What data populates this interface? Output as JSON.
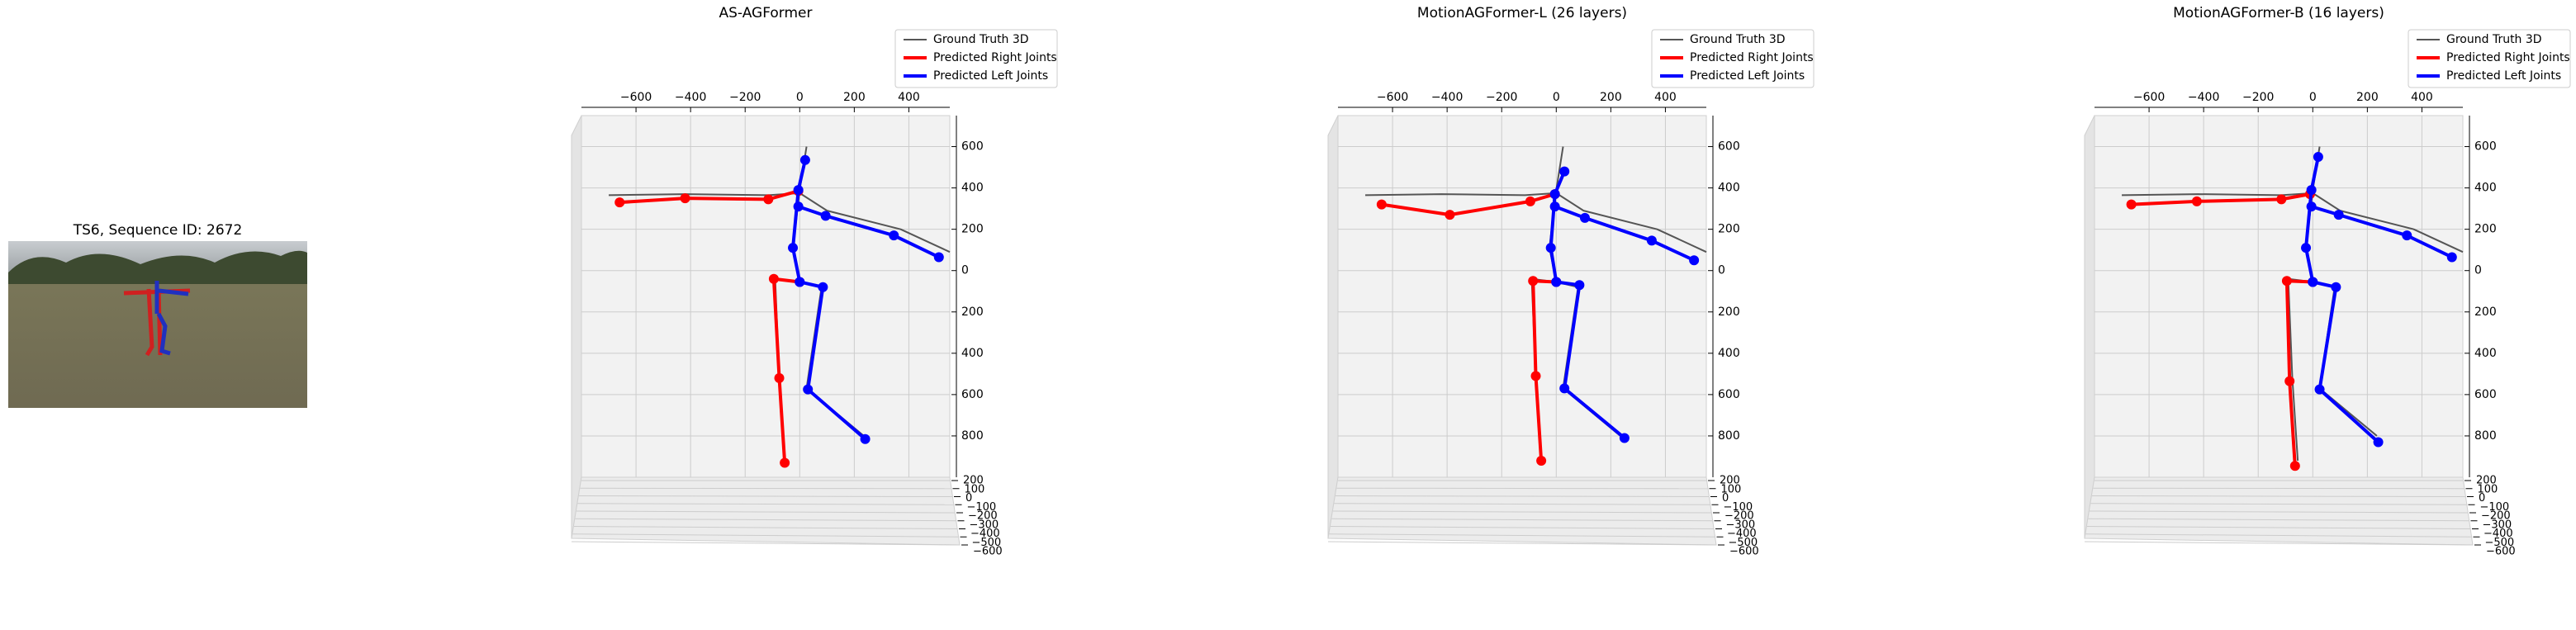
{
  "chart_data": [
    {
      "type": "image",
      "title": "TS6, Sequence ID: 2672"
    },
    {
      "type": "line3d",
      "title": "AS-AGFormer",
      "legend": "upper right",
      "xlim": [
        -800,
        550
      ],
      "xticks": [
        {
          "value": -600,
          "label": "−600"
        },
        {
          "value": -400,
          "label": "−400"
        },
        {
          "value": -200,
          "label": "−200"
        },
        0,
        200,
        400
      ],
      "ylim": [
        -1000,
        750
      ],
      "yticks": [
        600,
        400,
        200,
        0,
        {
          "value": -200,
          "label": "200"
        },
        {
          "value": -400,
          "label": "400"
        },
        {
          "value": -600,
          "label": "600"
        },
        {
          "value": -800,
          "label": "800"
        }
      ],
      "zlim": [
        -600,
        200
      ],
      "zticks": [
        200,
        100,
        0,
        {
          "value": -100,
          "label": "−100"
        },
        {
          "value": -200,
          "label": "−200"
        },
        {
          "value": -300,
          "label": "−300"
        },
        {
          "value": -400,
          "label": "−400"
        },
        {
          "value": -500,
          "label": "−500"
        },
        {
          "value": -600,
          "label": "−600"
        }
      ],
      "series": [
        {
          "name": "Ground Truth 3D",
          "color": "#555555",
          "markers": false,
          "x": [
            -700,
            -420,
            -115,
            0,
            100,
            370,
            550,
            null,
            25,
            0,
            -25,
            0,
            null,
            0,
            -90,
            -75,
            -55,
            null,
            0,
            80,
            25,
            235
          ],
          "values": [
            365,
            370,
            365,
            375,
            290,
            200,
            90,
            null,
            600,
            390,
            110,
            -55,
            null,
            -55,
            -40,
            -520,
            -920,
            null,
            -55,
            -80,
            -570,
            -800
          ]
        },
        {
          "name": "Predicted Right Joints",
          "color": "#ff0000",
          "markers": true,
          "x": [
            -660,
            -420,
            -115,
            -5,
            null,
            0,
            -95,
            -75,
            -55
          ],
          "values": [
            330,
            350,
            345,
            385,
            null,
            -55,
            -40,
            -520,
            -930
          ]
        },
        {
          "name": "Predicted Left Joints",
          "color": "#0000ff",
          "markers": true,
          "x": [
            20,
            -5,
            -25,
            0,
            null,
            -5,
            95,
            345,
            510,
            null,
            0,
            85,
            30,
            240
          ],
          "values": [
            535,
            390,
            110,
            -55,
            null,
            310,
            265,
            170,
            65,
            null,
            -55,
            -80,
            -575,
            -815
          ]
        }
      ]
    },
    {
      "type": "line3d",
      "title": "MotionAGFormer-L (26 layers)",
      "legend": "upper right",
      "xlim": [
        -800,
        550
      ],
      "xticks": [
        {
          "value": -600,
          "label": "−600"
        },
        {
          "value": -400,
          "label": "−400"
        },
        {
          "value": -200,
          "label": "−200"
        },
        0,
        200,
        400
      ],
      "ylim": [
        -1000,
        750
      ],
      "yticks": [
        600,
        400,
        200,
        0,
        {
          "value": -200,
          "label": "200"
        },
        {
          "value": -400,
          "label": "400"
        },
        {
          "value": -600,
          "label": "600"
        },
        {
          "value": -800,
          "label": "800"
        }
      ],
      "zlim": [
        -600,
        200
      ],
      "zticks": [
        200,
        100,
        0,
        {
          "value": -100,
          "label": "−100"
        },
        {
          "value": -200,
          "label": "−200"
        },
        {
          "value": -300,
          "label": "−300"
        },
        {
          "value": -400,
          "label": "−400"
        },
        {
          "value": -500,
          "label": "−500"
        },
        {
          "value": -600,
          "label": "−600"
        }
      ],
      "series": [
        {
          "name": "Ground Truth 3D",
          "color": "#555555",
          "markers": false,
          "x": [
            -700,
            -420,
            -115,
            0,
            100,
            370,
            550,
            null,
            25,
            0,
            -25,
            0,
            null,
            0,
            -90,
            -75,
            -55,
            null,
            0,
            80,
            25,
            235
          ],
          "values": [
            365,
            370,
            365,
            375,
            290,
            200,
            90,
            null,
            600,
            390,
            110,
            -55,
            null,
            -55,
            -40,
            -520,
            -920,
            null,
            -55,
            -80,
            -570,
            -800
          ]
        },
        {
          "name": "Predicted Right Joints",
          "color": "#ff0000",
          "markers": true,
          "x": [
            -640,
            -390,
            -95,
            -5,
            null,
            0,
            -85,
            -75,
            -55
          ],
          "values": [
            320,
            270,
            335,
            370,
            null,
            -55,
            -50,
            -510,
            -920
          ]
        },
        {
          "name": "Predicted Left Joints",
          "color": "#0000ff",
          "markers": true,
          "x": [
            30,
            -5,
            -20,
            0,
            null,
            -5,
            105,
            350,
            505,
            null,
            0,
            85,
            30,
            250
          ],
          "values": [
            480,
            370,
            110,
            -55,
            null,
            310,
            255,
            145,
            50,
            null,
            -55,
            -70,
            -570,
            -810
          ]
        }
      ]
    },
    {
      "type": "line3d",
      "title": "MotionAGFormer-B (16 layers)",
      "legend": "upper right",
      "xlim": [
        -800,
        550
      ],
      "xticks": [
        {
          "value": -600,
          "label": "−600"
        },
        {
          "value": -400,
          "label": "−400"
        },
        {
          "value": -200,
          "label": "−200"
        },
        0,
        200,
        400
      ],
      "ylim": [
        -1000,
        750
      ],
      "yticks": [
        600,
        400,
        200,
        0,
        {
          "value": -200,
          "label": "200"
        },
        {
          "value": -400,
          "label": "400"
        },
        {
          "value": -600,
          "label": "600"
        },
        {
          "value": -800,
          "label": "800"
        }
      ],
      "zlim": [
        -600,
        200
      ],
      "zticks": [
        200,
        100,
        0,
        {
          "value": -100,
          "label": "−100"
        },
        {
          "value": -200,
          "label": "−200"
        },
        {
          "value": -300,
          "label": "−300"
        },
        {
          "value": -400,
          "label": "−400"
        },
        {
          "value": -500,
          "label": "−500"
        },
        {
          "value": -600,
          "label": "−600"
        }
      ],
      "series": [
        {
          "name": "Ground Truth 3D",
          "color": "#555555",
          "markers": false,
          "x": [
            -700,
            -420,
            -115,
            0,
            100,
            370,
            550,
            null,
            25,
            0,
            -25,
            0,
            null,
            0,
            -90,
            -75,
            -55,
            null,
            0,
            80,
            25,
            235
          ],
          "values": [
            365,
            370,
            365,
            375,
            290,
            200,
            90,
            null,
            600,
            390,
            110,
            -55,
            null,
            -55,
            -40,
            -520,
            -920,
            null,
            -55,
            -80,
            -570,
            -800
          ]
        },
        {
          "name": "Predicted Right Joints",
          "color": "#ff0000",
          "markers": true,
          "x": [
            -665,
            -425,
            -115,
            -10,
            null,
            0,
            -95,
            -85,
            -65
          ],
          "values": [
            320,
            335,
            345,
            370,
            null,
            -55,
            -50,
            -535,
            -945
          ]
        },
        {
          "name": "Predicted Left Joints",
          "color": "#0000ff",
          "markers": true,
          "x": [
            20,
            -5,
            -25,
            0,
            null,
            -5,
            95,
            345,
            510,
            null,
            0,
            85,
            25,
            240
          ],
          "values": [
            550,
            390,
            110,
            -55,
            null,
            310,
            270,
            170,
            65,
            null,
            -55,
            -80,
            -575,
            -830
          ]
        }
      ]
    }
  ]
}
